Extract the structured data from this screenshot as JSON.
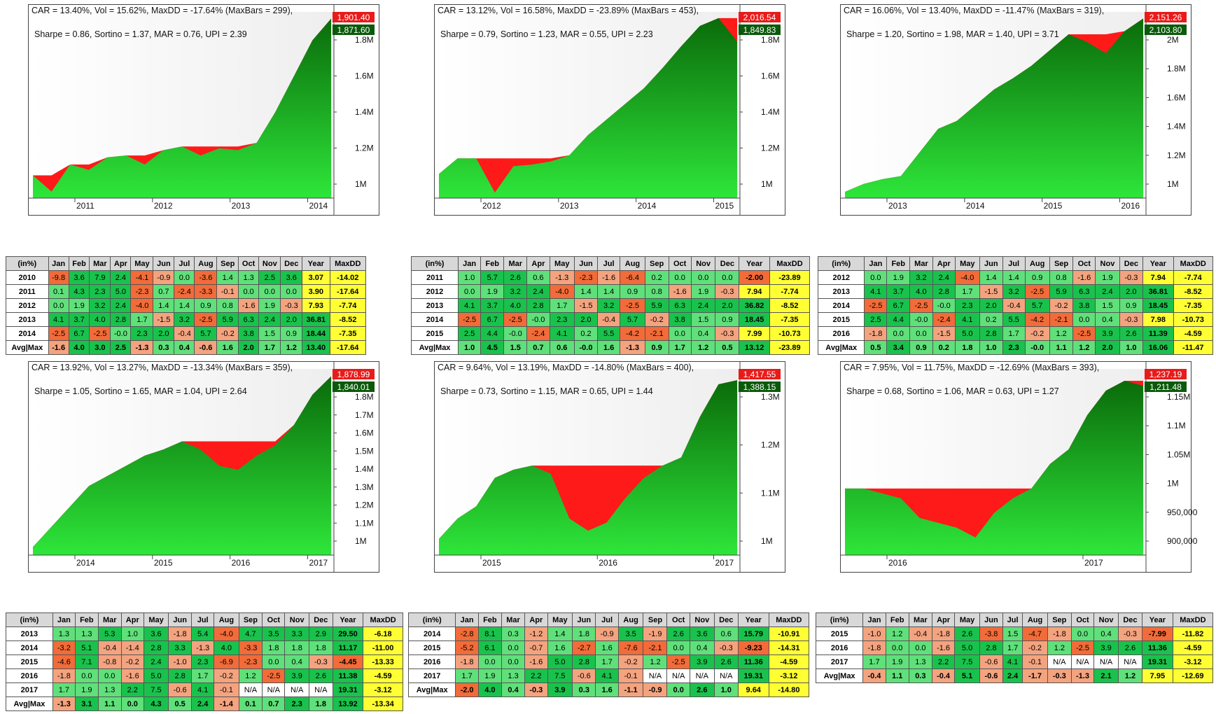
{
  "colors": {
    "deep_red": "#f26b38",
    "light_red": "#f4a37f",
    "light_green": "#5fe07a",
    "deep_green": "#19c24c",
    "yellow": "#ffff33",
    "white": "#ffffff"
  },
  "table_header": [
    "(in%)",
    "Jan",
    "Feb",
    "Mar",
    "Apr",
    "May",
    "Jun",
    "Jul",
    "Aug",
    "Sep",
    "Oct",
    "Nov",
    "Dec",
    "Year",
    "MaxDD"
  ],
  "panels": [
    {
      "stats": {
        "line1": "CAR = 13.40%, Vol = 15.62%, MaxDD = -17.64% (MaxBars = 299),",
        "line2": "Sharpe = 0.86, Sortino = 1.37, MAR = 0.76, UPI = 2.39"
      },
      "chart_data": {
        "type": "area",
        "x_ticks": [
          "2011",
          "2012",
          "2013",
          "2014"
        ],
        "y_ticks": [
          "1M",
          "1.2M",
          "1.4M",
          "1.6M",
          "1.8M"
        ],
        "last_equity": "1,871.60",
        "last_high": "1,901.40",
        "equity": [
          1.0,
          0.91,
          1.06,
          1.03,
          1.1,
          1.11,
          1.06,
          1.14,
          1.16,
          1.11,
          1.15,
          1.14,
          1.18,
          1.35,
          1.55,
          1.75,
          1.87
        ]
      },
      "table": {
        "rows": [
          [
            "2010",
            "-9.8",
            "3.6",
            "7.9",
            "2.4",
            "-4.1",
            "-0.9",
            "0.0",
            "-3.6",
            "1.4",
            "1.3",
            "2.5",
            "3.6",
            "3.07",
            "-14.02"
          ],
          [
            "2011",
            "0.1",
            "4.3",
            "2.3",
            "5.0",
            "-2.3",
            "0.7",
            "-2.4",
            "-3.3",
            "-0.1",
            "0.0",
            "0.0",
            "0.0",
            "3.90",
            "-17.64"
          ],
          [
            "2012",
            "0.0",
            "1.9",
            "3.2",
            "2.4",
            "-4.0",
            "1.4",
            "1.4",
            "0.9",
            "0.8",
            "-1.6",
            "1.9",
            "-0.3",
            "7.93",
            "-7.74"
          ],
          [
            "2013",
            "4.1",
            "3.7",
            "4.0",
            "2.8",
            "1.7",
            "-1.5",
            "3.2",
            "-2.5",
            "5.9",
            "6.3",
            "2.4",
            "2.0",
            "36.81",
            "-8.52"
          ],
          [
            "2014",
            "-2.5",
            "6.7",
            "-2.5",
            "-0.0",
            "2.3",
            "2.0",
            "-0.4",
            "5.7",
            "-0.2",
            "3.8",
            "1.5",
            "0.9",
            "18.44",
            "-7.35"
          ]
        ],
        "avg": [
          "Avg|Max",
          "-1.6",
          "4.0",
          "3.0",
          "2.5",
          "-1.3",
          "0.3",
          "0.4",
          "-0.6",
          "1.6",
          "2.0",
          "1.7",
          "1.2",
          "13.40",
          "-17.64"
        ]
      }
    },
    {
      "stats": {
        "line1": "CAR = 13.12%, Vol = 16.58%, MaxDD = -23.89% (MaxBars = 453),",
        "line2": "Sharpe = 0.79, Sortino = 1.23, MAR = 0.55, UPI = 2.23"
      },
      "chart_data": {
        "type": "area",
        "x_ticks": [
          "2012",
          "2013",
          "2014",
          "2015"
        ],
        "y_ticks": [
          "1M",
          "1.2M",
          "1.4M",
          "1.6M",
          "1.8M"
        ],
        "last_equity": "1,849.83",
        "last_high": "2,016.54",
        "equity": [
          1.0,
          1.1,
          1.1,
          0.88,
          1.05,
          1.06,
          1.08,
          1.12,
          1.25,
          1.35,
          1.45,
          1.55,
          1.68,
          1.82,
          1.95,
          2.0,
          1.85
        ]
      },
      "table": {
        "rows": [
          [
            "2011",
            "1.0",
            "5.7",
            "2.6",
            "0.6",
            "-1.3",
            "-2.3",
            "-1.6",
            "-6.4",
            "0.2",
            "0.0",
            "0.0",
            "0.0",
            "-2.00",
            "-23.89"
          ],
          [
            "2012",
            "0.0",
            "1.9",
            "3.2",
            "2.4",
            "-4.0",
            "1.4",
            "1.4",
            "0.9",
            "0.8",
            "-1.6",
            "1.9",
            "-0.3",
            "7.94",
            "-7.74"
          ],
          [
            "2013",
            "4.1",
            "3.7",
            "4.0",
            "2.8",
            "1.7",
            "-1.5",
            "3.2",
            "-2.5",
            "5.9",
            "6.3",
            "2.4",
            "2.0",
            "36.82",
            "-8.52"
          ],
          [
            "2014",
            "-2.5",
            "6.7",
            "-2.5",
            "-0.0",
            "2.3",
            "2.0",
            "-0.4",
            "5.7",
            "-0.2",
            "3.8",
            "1.5",
            "0.9",
            "18.45",
            "-7.35"
          ],
          [
            "2015",
            "2.5",
            "4.4",
            "-0.0",
            "-2.4",
            "4.1",
            "0.2",
            "5.5",
            "-4.2",
            "-2.1",
            "0.0",
            "0.4",
            "-0.3",
            "7.99",
            "-10.73"
          ]
        ],
        "avg": [
          "Avg|Max",
          "1.0",
          "4.5",
          "1.5",
          "0.7",
          "0.6",
          "-0.0",
          "1.6",
          "-1.3",
          "0.9",
          "1.7",
          "1.2",
          "0.5",
          "13.12",
          "-23.89"
        ]
      }
    },
    {
      "stats": {
        "line1": "CAR = 16.06%, Vol = 13.40%, MaxDD = -11.47% (MaxBars = 319),",
        "line2": "Sharpe = 1.20, Sortino = 1.98, MAR = 1.40, UPI = 3.71"
      },
      "chart_data": {
        "type": "area",
        "x_ticks": [
          "2013",
          "2014",
          "2015",
          "2016"
        ],
        "y_ticks": [
          "1M",
          "1.2M",
          "1.4M",
          "1.6M",
          "1.8M",
          "2M"
        ],
        "last_equity": "2,103.80",
        "last_high": "2,151.26",
        "equity": [
          1.0,
          1.05,
          1.08,
          1.1,
          1.25,
          1.4,
          1.45,
          1.55,
          1.65,
          1.72,
          1.8,
          1.9,
          2.0,
          1.95,
          1.88,
          2.02,
          2.1
        ]
      },
      "table": {
        "rows": [
          [
            "2012",
            "0.0",
            "1.9",
            "3.2",
            "2.4",
            "-4.0",
            "1.4",
            "1.4",
            "0.9",
            "0.8",
            "-1.6",
            "1.9",
            "-0.3",
            "7.94",
            "-7.74"
          ],
          [
            "2013",
            "4.1",
            "3.7",
            "4.0",
            "2.8",
            "1.7",
            "-1.5",
            "3.2",
            "-2.5",
            "5.9",
            "6.3",
            "2.4",
            "2.0",
            "36.81",
            "-8.52"
          ],
          [
            "2014",
            "-2.5",
            "6.7",
            "-2.5",
            "-0.0",
            "2.3",
            "2.0",
            "-0.4",
            "5.7",
            "-0.2",
            "3.8",
            "1.5",
            "0.9",
            "18.45",
            "-7.35"
          ],
          [
            "2015",
            "2.5",
            "4.4",
            "-0.0",
            "-2.4",
            "4.1",
            "0.2",
            "5.5",
            "-4.2",
            "-2.1",
            "0.0",
            "0.4",
            "-0.3",
            "7.98",
            "-10.73"
          ],
          [
            "2016",
            "-1.8",
            "0.0",
            "0.0",
            "-1.5",
            "5.0",
            "2.8",
            "1.7",
            "-0.2",
            "1.2",
            "-2.5",
            "3.9",
            "2.6",
            "11.39",
            "-4.59"
          ]
        ],
        "avg": [
          "Avg|Max",
          "0.5",
          "3.4",
          "0.9",
          "0.2",
          "1.8",
          "1.0",
          "2.3",
          "-0.0",
          "1.1",
          "1.2",
          "2.0",
          "1.0",
          "16.06",
          "-11.47"
        ]
      }
    },
    {
      "stats": {
        "line1": "CAR = 13.92%, Vol = 13.27%, MaxDD = -13.34% (MaxBars = 359),",
        "line2": "Sharpe = 1.05, Sortino = 1.65, MAR = 1.04, UPI = 2.64"
      },
      "chart_data": {
        "type": "area",
        "x_ticks": [
          "2014",
          "2015",
          "2016",
          "2017"
        ],
        "y_ticks": [
          "1M",
          "1.1M",
          "1.2M",
          "1.3M",
          "1.4M",
          "1.5M",
          "1.6M",
          "1.7M",
          "1.8M"
        ],
        "last_equity": "1,840.01",
        "last_high": "1,878.99",
        "equity": [
          1.0,
          1.1,
          1.2,
          1.3,
          1.35,
          1.4,
          1.45,
          1.48,
          1.52,
          1.48,
          1.4,
          1.38,
          1.45,
          1.5,
          1.6,
          1.75,
          1.84
        ]
      },
      "table": {
        "rows": [
          [
            "2013",
            "1.3",
            "1.3",
            "5.3",
            "1.0",
            "3.6",
            "-1.8",
            "5.4",
            "-4.0",
            "4.7",
            "3.5",
            "3.3",
            "2.9",
            "29.50",
            "-6.18"
          ],
          [
            "2014",
            "-3.2",
            "5.1",
            "-0.4",
            "-1.4",
            "2.8",
            "3.3",
            "-1.3",
            "4.0",
            "-3.3",
            "1.8",
            "1.8",
            "1.8",
            "11.17",
            "-11.00"
          ],
          [
            "2015",
            "-4.6",
            "7.1",
            "-0.8",
            "-0.2",
            "2.4",
            "-1.0",
            "2.3",
            "-6.9",
            "-2.3",
            "0.0",
            "0.4",
            "-0.3",
            "-4.45",
            "-13.33"
          ],
          [
            "2016",
            "-1.8",
            "0.0",
            "0.0",
            "-1.6",
            "5.0",
            "2.8",
            "1.7",
            "-0.2",
            "1.2",
            "-2.5",
            "3.9",
            "2.6",
            "11.38",
            "-4.59"
          ],
          [
            "2017",
            "1.7",
            "1.9",
            "1.3",
            "2.2",
            "7.5",
            "-0.6",
            "4.1",
            "-0.1",
            "N/A",
            "N/A",
            "N/A",
            "N/A",
            "19.31",
            "-3.12"
          ]
        ],
        "avg": [
          "Avg|Max",
          "-1.3",
          "3.1",
          "1.1",
          "0.0",
          "4.3",
          "0.5",
          "2.4",
          "-1.4",
          "0.1",
          "0.7",
          "2.3",
          "1.8",
          "13.92",
          "-13.34"
        ]
      }
    },
    {
      "stats": {
        "line1": "CAR = 9.64%, Vol = 13.19%, MaxDD = -14.80% (MaxBars = 400),",
        "line2": "Sharpe = 0.73, Sortino = 1.15, MAR = 0.65, UPI = 1.44"
      },
      "chart_data": {
        "type": "area",
        "x_ticks": [
          "2015",
          "2016",
          "2017"
        ],
        "y_ticks": [
          "1M",
          "1.1M",
          "1.2M",
          "1.3M"
        ],
        "last_equity": "1,388.15",
        "last_high": "1,417.55",
        "equity": [
          1.0,
          1.05,
          1.08,
          1.15,
          1.17,
          1.18,
          1.16,
          1.05,
          1.02,
          1.04,
          1.1,
          1.15,
          1.18,
          1.2,
          1.3,
          1.38,
          1.39
        ]
      },
      "table": {
        "rows": [
          [
            "2014",
            "-2.8",
            "8.1",
            "0.3",
            "-1.2",
            "1.4",
            "1.8",
            "-0.9",
            "3.5",
            "-1.9",
            "2.6",
            "3.6",
            "0.6",
            "15.79",
            "-10.91"
          ],
          [
            "2015",
            "-5.2",
            "6.1",
            "0.0",
            "-0.7",
            "1.6",
            "-2.7",
            "1.6",
            "-7.6",
            "-2.1",
            "0.0",
            "0.4",
            "-0.3",
            "-9.23",
            "-14.31"
          ],
          [
            "2016",
            "-1.8",
            "0.0",
            "0.0",
            "-1.6",
            "5.0",
            "2.8",
            "1.7",
            "-0.2",
            "1.2",
            "-2.5",
            "3.9",
            "2.6",
            "11.36",
            "-4.59"
          ],
          [
            "2017",
            "1.7",
            "1.9",
            "1.3",
            "2.2",
            "7.5",
            "-0.6",
            "4.1",
            "-0.1",
            "N/A",
            "N/A",
            "N/A",
            "N/A",
            "19.31",
            "-3.12"
          ]
        ],
        "avg": [
          "Avg|Max",
          "-2.0",
          "4.0",
          "0.4",
          "-0.3",
          "3.9",
          "0.3",
          "1.6",
          "-1.1",
          "-0.9",
          "0.0",
          "2.6",
          "1.0",
          "9.64",
          "-14.80"
        ]
      }
    },
    {
      "stats": {
        "line1": "CAR = 7.95%, Vol = 11.75%, MaxDD = -12.69% (MaxBars = 393),",
        "line2": "Sharpe = 0.68, Sortino = 1.06, MAR = 0.63, UPI = 1.27"
      },
      "chart_data": {
        "type": "area",
        "x_ticks": [
          "2016",
          "2017"
        ],
        "y_ticks": [
          "900,000",
          "950,000",
          "1M",
          "1.05M",
          "1.1M",
          "1.15M"
        ],
        "last_equity": "1,211.48",
        "last_high": "1,237.19",
        "equity": [
          1.0,
          1.0,
          0.99,
          0.98,
          0.94,
          0.93,
          0.92,
          0.9,
          0.95,
          0.98,
          1.0,
          1.05,
          1.08,
          1.15,
          1.2,
          1.22,
          1.21
        ]
      },
      "table": {
        "rows": [
          [
            "2015",
            "-1.0",
            "1.2",
            "-0.4",
            "-1.8",
            "2.6",
            "-3.8",
            "1.5",
            "-4.7",
            "-1.8",
            "0.0",
            "0.4",
            "-0.3",
            "-7.99",
            "-11.82"
          ],
          [
            "2016",
            "-1.8",
            "0.0",
            "0.0",
            "-1.6",
            "5.0",
            "2.8",
            "1.7",
            "-0.2",
            "1.2",
            "-2.5",
            "3.9",
            "2.6",
            "11.36",
            "-4.59"
          ],
          [
            "2017",
            "1.7",
            "1.9",
            "1.3",
            "2.2",
            "7.5",
            "-0.6",
            "4.1",
            "-0.1",
            "N/A",
            "N/A",
            "N/A",
            "N/A",
            "19.31",
            "-3.12"
          ]
        ],
        "avg": [
          "Avg|Max",
          "-0.4",
          "1.1",
          "0.3",
          "-0.4",
          "5.1",
          "-0.6",
          "2.4",
          "-1.7",
          "-0.3",
          "-1.3",
          "2.1",
          "1.2",
          "7.95",
          "-12.69"
        ]
      }
    }
  ]
}
